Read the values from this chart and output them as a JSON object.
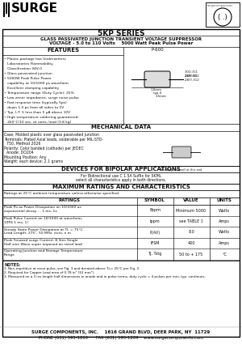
{
  "title": "5KP SERIES",
  "subtitle1": "GLASS PASSIVATED JUNCTION TRANSIENT VOLTAGE SUPPRESSOR",
  "subtitle2": "VOLTAGE - 5.0 to 110 Volts    5000 Watt Peak Pulse Power",
  "features_title": "FEATURES",
  "mech_title": "MECHANICAL DATA",
  "bipolar_title": "DEVICES FOR BIPOLAR APPLICATIONS",
  "bipolar_text1": "For Bidirectional use C (1.5A Suffix for 5KP6,",
  "bipolar_text2": "select all characteristics apply in both directions.",
  "ratings_title": "MAXIMUM RATINGS AND CHARACTERISTICS",
  "footer1": "SURGE COMPONENTS, INC.    1616 GRAND BLVD, DEER PARK, NY  11729",
  "footer2": "PHONE (631) 595-1810      FAX (631) 595-1289    www.surgecomponents.com",
  "bg_color": "#f5f5f0",
  "white": "#ffffff",
  "black": "#111111"
}
